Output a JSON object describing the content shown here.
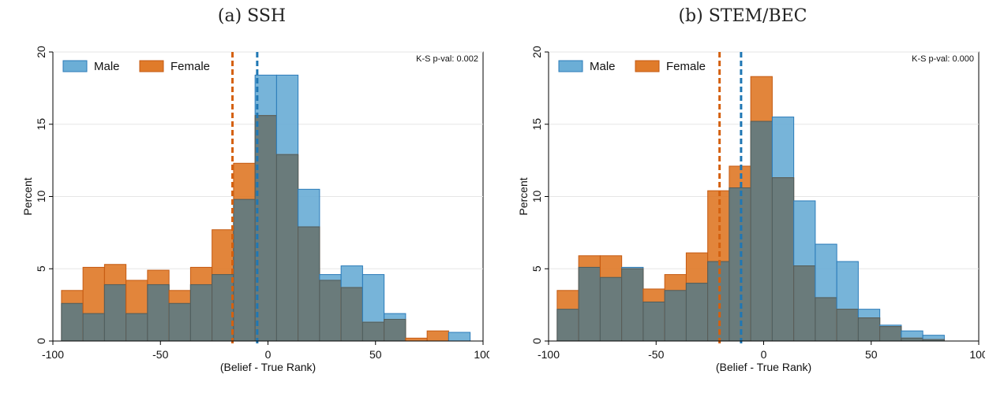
{
  "panels": [
    {
      "caption": "(a) SSH",
      "ks_label": "K-S p-val: 0.002"
    },
    {
      "caption": "(b) STEM/BEC",
      "ks_label": "K-S p-val: 0.000"
    }
  ],
  "chart_data": [
    {
      "type": "bar",
      "title": "(a) SSH",
      "xlabel": "(Belief - True Rank)",
      "ylabel": "Percent",
      "xlim": [
        -100,
        100
      ],
      "ylim": [
        0,
        20
      ],
      "xticks": [
        -100,
        -50,
        0,
        50,
        100
      ],
      "yticks": [
        0,
        5,
        10,
        15,
        20
      ],
      "annotation": "K-S p-val: 0.002",
      "legend": [
        "Male",
        "Female"
      ],
      "legend_position": "top-left",
      "colors": {
        "Male": "#6BAED6",
        "Female": "#E07B2A",
        "overlap": "#6A7B7B"
      },
      "bin_edges": [
        -96,
        -86,
        -76,
        -66,
        -56,
        -46,
        -36,
        -26,
        -16,
        -6,
        4,
        14,
        24,
        34,
        44,
        54,
        64,
        74,
        84,
        94
      ],
      "series": [
        {
          "name": "Male",
          "values": [
            2.6,
            1.9,
            3.9,
            1.9,
            3.9,
            2.6,
            3.9,
            4.6,
            9.8,
            18.4,
            18.4,
            10.5,
            4.6,
            5.2,
            4.6,
            1.9,
            0,
            0,
            0.6
          ]
        },
        {
          "name": "Female",
          "values": [
            3.5,
            5.1,
            5.3,
            4.2,
            4.9,
            3.5,
            5.1,
            7.7,
            12.3,
            15.6,
            12.9,
            7.9,
            4.2,
            3.7,
            1.3,
            1.5,
            0.2,
            0.7,
            0
          ]
        }
      ],
      "vlines": [
        {
          "series": "Female",
          "x": -16.5
        },
        {
          "series": "Male",
          "x": -5
        }
      ]
    },
    {
      "type": "bar",
      "title": "(b) STEM/BEC",
      "xlabel": "(Belief - True Rank)",
      "ylabel": "Percent",
      "xlim": [
        -100,
        100
      ],
      "ylim": [
        0,
        20
      ],
      "xticks": [
        -100,
        -50,
        0,
        50,
        100
      ],
      "yticks": [
        0,
        5,
        10,
        15,
        20
      ],
      "annotation": "K-S p-val: 0.000",
      "legend": [
        "Male",
        "Female"
      ],
      "legend_position": "top-left",
      "colors": {
        "Male": "#6BAED6",
        "Female": "#E07B2A",
        "overlap": "#6A7B7B"
      },
      "bin_edges": [
        -96,
        -86,
        -76,
        -66,
        -56,
        -46,
        -36,
        -26,
        -16,
        -6,
        4,
        14,
        24,
        34,
        44,
        54,
        64,
        74,
        84
      ],
      "series": [
        {
          "name": "Male",
          "values": [
            2.2,
            5.1,
            4.4,
            5.1,
            2.7,
            3.5,
            4.0,
            5.5,
            10.6,
            15.2,
            15.5,
            9.7,
            6.7,
            5.5,
            2.2,
            1.1,
            0.7,
            0.4
          ]
        },
        {
          "name": "Female",
          "values": [
            3.5,
            5.9,
            5.9,
            5.0,
            3.6,
            4.6,
            6.1,
            10.4,
            12.1,
            18.3,
            11.3,
            5.2,
            3.0,
            2.2,
            1.6,
            1.0,
            0.2,
            0.1
          ]
        }
      ],
      "vlines": [
        {
          "series": "Female",
          "x": -20.5
        },
        {
          "series": "Male",
          "x": -10.5
        }
      ]
    }
  ]
}
